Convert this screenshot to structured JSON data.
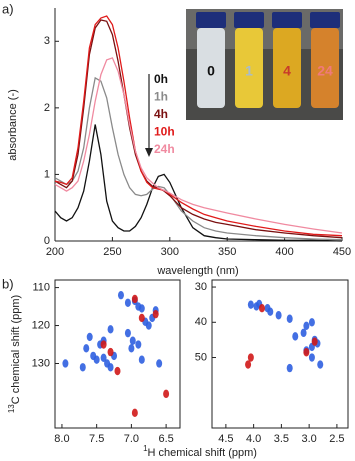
{
  "panel_labels": [
    "a)",
    "b)"
  ],
  "inset_labels": [
    "0",
    "1",
    "4",
    "24"
  ],
  "chart_data": [
    {
      "type": "line",
      "x_label": "wavelength (nm)",
      "y_label": "absorbance (-)",
      "x": [
        200,
        205,
        210,
        215,
        220,
        225,
        230,
        235,
        240,
        245,
        250,
        255,
        260,
        265,
        270,
        275,
        280,
        285,
        290,
        295,
        300,
        310,
        320,
        330,
        340,
        350,
        375,
        400,
        425,
        450
      ],
      "xlim": [
        200,
        450
      ],
      "xticks": [
        200,
        250,
        300,
        350,
        400,
        450
      ],
      "ylim": [
        0,
        3.5
      ],
      "yticks": [
        0,
        1,
        2,
        3
      ],
      "series": [
        {
          "name": "0h",
          "color": "#111111",
          "values": [
            0.45,
            0.35,
            0.3,
            0.35,
            0.5,
            0.75,
            1.2,
            1.75,
            1.3,
            0.6,
            0.3,
            0.2,
            0.15,
            0.15,
            0.22,
            0.35,
            0.55,
            0.8,
            0.97,
            1.0,
            0.88,
            0.5,
            0.2,
            0.08,
            0.05,
            0.03,
            0.02,
            0.01,
            0.01,
            0.0
          ]
        },
        {
          "name": "1h",
          "color": "#8a8a8a",
          "values": [
            0.95,
            0.9,
            0.85,
            0.9,
            1.05,
            1.4,
            2.0,
            2.45,
            2.4,
            2.15,
            1.7,
            1.3,
            1.0,
            0.8,
            0.7,
            0.68,
            0.7,
            0.78,
            0.82,
            0.8,
            0.7,
            0.45,
            0.3,
            0.2,
            0.15,
            0.12,
            0.08,
            0.05,
            0.03,
            0.02
          ]
        },
        {
          "name": "4h",
          "color": "#7a1010",
          "values": [
            0.9,
            0.85,
            0.8,
            0.9,
            1.3,
            2.0,
            2.8,
            3.2,
            3.32,
            3.3,
            3.1,
            2.7,
            2.2,
            1.7,
            1.3,
            1.05,
            0.9,
            0.82,
            0.8,
            0.75,
            0.68,
            0.5,
            0.4,
            0.33,
            0.28,
            0.25,
            0.17,
            0.12,
            0.08,
            0.05
          ]
        },
        {
          "name": "10h",
          "color": "#e01a1a",
          "values": [
            0.9,
            0.88,
            0.85,
            0.95,
            1.4,
            2.1,
            2.9,
            3.25,
            3.35,
            3.38,
            3.25,
            2.9,
            2.4,
            1.85,
            1.35,
            1.05,
            0.88,
            0.8,
            0.78,
            0.76,
            0.7,
            0.58,
            0.48,
            0.4,
            0.35,
            0.3,
            0.22,
            0.15,
            0.1,
            0.08
          ]
        },
        {
          "name": "24h",
          "color": "#f08aa0",
          "values": [
            0.85,
            0.8,
            0.75,
            0.8,
            0.9,
            1.2,
            1.6,
            2.1,
            2.5,
            2.72,
            2.75,
            2.55,
            2.2,
            1.75,
            1.35,
            1.1,
            0.95,
            0.87,
            0.8,
            0.76,
            0.72,
            0.62,
            0.55,
            0.5,
            0.46,
            0.42,
            0.33,
            0.25,
            0.18,
            0.12
          ]
        }
      ]
    },
    {
      "type": "scatter",
      "x_label_sup": "1",
      "x_label": "H chemical shift (ppm)",
      "y_label_sup": "13",
      "y_label": "C chemical shift (ppm)",
      "xlim": [
        8.1,
        6.3
      ],
      "xticks": [
        {
          "value": 8,
          "label": "8.0"
        },
        7.5,
        {
          "value": 7,
          "label": "7.0"
        },
        6.5
      ],
      "ylim": [
        147,
        108
      ],
      "yticks": [
        110,
        120,
        130
      ],
      "series": [
        {
          "color": "#2f5fe0",
          "x": [
            7.15,
            7.05,
            6.95,
            6.9,
            6.85,
            6.65,
            6.7,
            6.75,
            6.8,
            7.3,
            7.4,
            7.45,
            7.6,
            7.65,
            7.55,
            7.5,
            7.4,
            7.35,
            7.3,
            7.7,
            7.95,
            7.25,
            7.0,
            6.9,
            6.85,
            6.6,
            7.05,
            6.98
          ],
          "values": [
            112,
            114,
            113.5,
            115,
            115.5,
            116,
            118,
            120,
            119,
            121,
            124,
            125,
            123,
            126,
            128,
            129,
            128.5,
            130,
            131,
            131,
            130,
            128,
            126,
            125,
            129,
            130,
            122,
            124
          ]
        },
        {
          "color": "#d01818",
          "x": [
            6.95,
            6.85,
            6.65,
            7.4,
            7.2,
            6.95,
            6.5,
            7.3
          ],
          "values": [
            113,
            118,
            117,
            125,
            132,
            143,
            138,
            127
          ]
        }
      ]
    },
    {
      "type": "scatter",
      "xlim": [
        4.75,
        2.3
      ],
      "xticks": [
        4.5,
        {
          "value": 4,
          "label": "4.0"
        },
        3.5,
        {
          "value": 3,
          "label": "3.0"
        },
        2.5
      ],
      "ylim": [
        70,
        28
      ],
      "yticks": [
        30,
        40,
        50
      ],
      "series": [
        {
          "color": "#2f5fe0",
          "x": [
            4.05,
            3.95,
            3.9,
            3.75,
            3.7,
            3.55,
            3.35,
            3.25,
            3.1,
            3.05,
            2.95,
            2.9,
            2.85,
            2.95,
            2.8,
            3.35,
            3.05,
            2.95
          ],
          "values": [
            35,
            35.5,
            34.8,
            36,
            37,
            38,
            39,
            44,
            43,
            41,
            40,
            45,
            46,
            50,
            52,
            53,
            48,
            47
          ]
        },
        {
          "color": "#d01818",
          "x": [
            4.1,
            4.05,
            3.85,
            3.05,
            2.9
          ],
          "values": [
            52,
            50,
            36,
            48.5,
            45.5
          ]
        }
      ]
    }
  ]
}
